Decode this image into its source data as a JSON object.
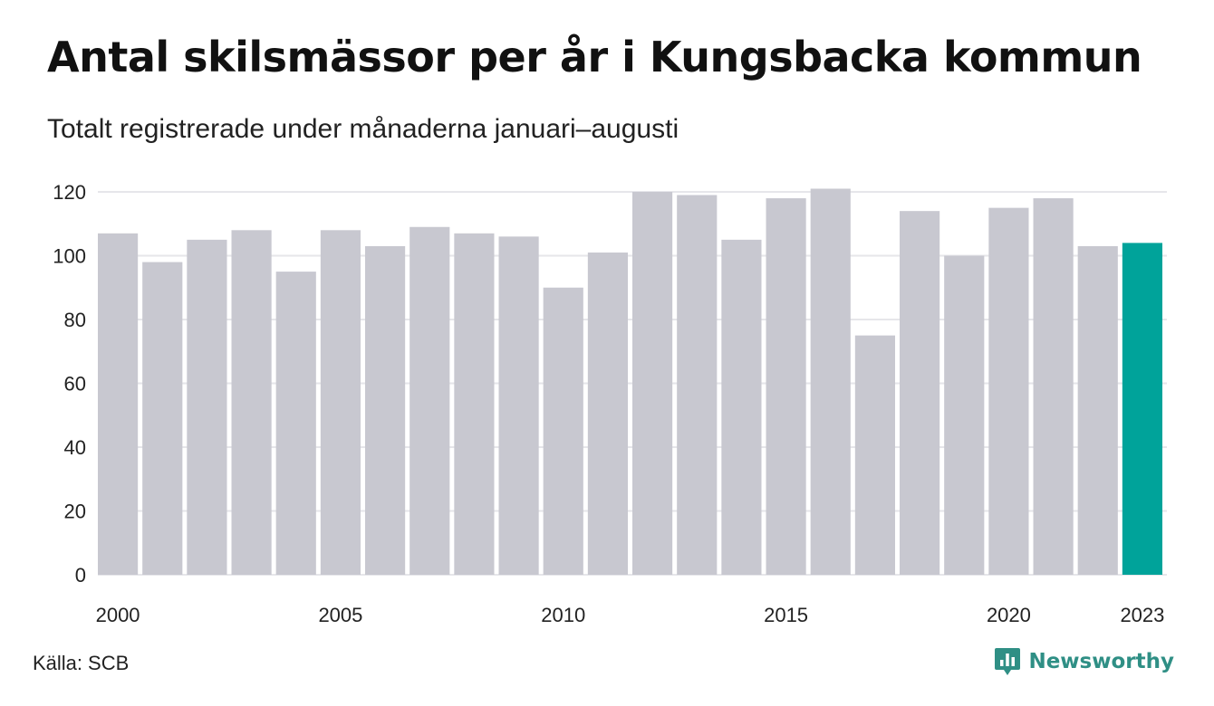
{
  "title": "Antal skilsmässor per år i Kungsbacka kommun",
  "subtitle": "Totalt registrerade under månaderna januari–augusti",
  "source": {
    "label": "Källa:",
    "name": "SCB"
  },
  "brand": {
    "name": "Newsworthy",
    "icon": "newsworthy-logo-icon",
    "color": "#2f8f85"
  },
  "colors": {
    "bar": "#c8c8d0",
    "highlight": "#00a39a",
    "grid": "#e6e6ea",
    "text": "#222222"
  },
  "chart_data": {
    "type": "bar",
    "categories": [
      "2000",
      "2001",
      "2002",
      "2003",
      "2004",
      "2005",
      "2006",
      "2007",
      "2008",
      "2009",
      "2010",
      "2011",
      "2012",
      "2013",
      "2014",
      "2015",
      "2016",
      "2017",
      "2018",
      "2019",
      "2020",
      "2021",
      "2022",
      "2023"
    ],
    "values": [
      107,
      98,
      105,
      108,
      95,
      108,
      103,
      109,
      107,
      106,
      90,
      101,
      120,
      119,
      105,
      118,
      121,
      75,
      114,
      100,
      115,
      118,
      103,
      104
    ],
    "highlight_category": "2023",
    "x_tick_labels": [
      "2000",
      "2005",
      "2010",
      "2015",
      "2020",
      "2023"
    ],
    "y_ticks": [
      0,
      20,
      40,
      60,
      80,
      100,
      120
    ],
    "ylim": [
      0,
      120
    ],
    "xlabel": "",
    "ylabel": "",
    "grid": true,
    "legend": false
  }
}
